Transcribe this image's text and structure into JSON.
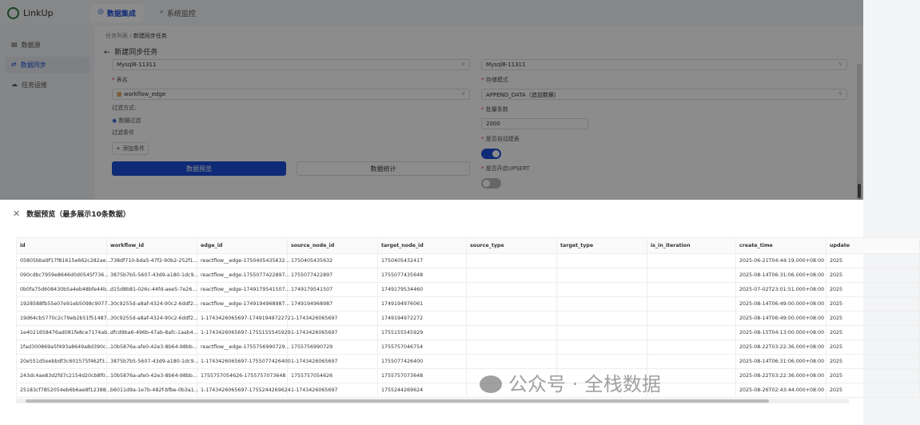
{
  "app": {
    "name": "LinkUp"
  },
  "topnav": [
    {
      "label": "数据集成",
      "icon": "eye-icon",
      "active": true
    },
    {
      "label": "系统监控",
      "icon": "search-icon",
      "active": false
    }
  ],
  "sidebar": [
    {
      "label": "数据源",
      "icon": "database-icon"
    },
    {
      "label": "数据同步",
      "icon": "sync-icon",
      "active": true
    },
    {
      "label": "任务运维",
      "icon": "cloud-icon"
    }
  ],
  "breadcrumb": [
    "任务列表",
    "新建同步任务"
  ],
  "page_title": "新建同步任务",
  "form": {
    "source_ds": "Mysql8-11311",
    "table_label": "表名",
    "table_value": "workflow_edge",
    "filter_mode_label": "过滤方式:",
    "filter_radio": "数据过滤",
    "filter_cond_label": "过滤条件",
    "add_cond": "+ 添加条件",
    "preview_btn": "数据预览",
    "stats_btn": "数据统计",
    "target_ds": "Mysql8-11311",
    "store_mode_label": "存储模式",
    "store_mode_value": "APPEND_DATA（追加数据）",
    "batch_label": "批量条数",
    "batch_value": "2000",
    "auto_create_label": "是否自动建表",
    "auto_create": true,
    "upsert_label": "是否开启UPSERT",
    "upsert": false,
    "accent": "#1d4ed8"
  },
  "drawer": {
    "title": "数据预览（最多展示10条数据）",
    "columns": [
      "id",
      "workflow_id",
      "edge_id",
      "source_node_id",
      "target_node_id",
      "source_type",
      "target_type",
      "is_in_iteration",
      "create_time",
      "update"
    ],
    "rows": [
      [
        "05805bba9f17f81615e662c282ae...",
        "738df710-bda5-47f2-90b2-252f1...",
        "reactflow__edge-1750405435632...",
        "1750405435632",
        "1750405432417",
        "",
        "",
        "",
        "2025-06-21T04:44:19.000+08:00",
        "2025"
      ],
      [
        "090cdbc7959e8646d0d0545f736...",
        "3875b7b5-5607-43d9-a180-1dc9...",
        "reactflow__edge-1755077422897...",
        "1755077422897",
        "1755077435648",
        "",
        "",
        "",
        "2025-08-14T06:31:06.000+08:00",
        "2025"
      ],
      [
        "0b0fa75d608430b5a4eb48bfe44b...",
        "d15d8b81-026c-44fd-aee5-7e26...",
        "reactflow__edge-1749179541507...",
        "1749179541507",
        "1749179534460",
        "",
        "",
        "",
        "2025-07-02T23:01:51.000+08:00",
        "2025"
      ],
      [
        "1928588fb55e07e91eb5098c9077...",
        "30c9255d-a8af-4324-90c2-6ddf2...",
        "reactflow__edge-1749194968987...",
        "1749194968987",
        "1749194976061",
        "",
        "",
        "",
        "2025-08-14T06:49:00.000+08:00",
        "2025"
      ],
      [
        "19d64cb5770c2c79eb2b51f51487...",
        "30c9255d-a8af-4324-90c2-6ddf2...",
        "1-1743426065697-1749194972272",
        "1-1743426065697",
        "1749194972272",
        "",
        "",
        "",
        "2025-08-14T06:49:00.000+08:00",
        "2025"
      ],
      [
        "1e4021658476ad081fe8ce7174ab...",
        "dfcd9ba6-496b-47ab-8afc-1aab4...",
        "1-1743426065697-1755155545929",
        "1-1743426065697",
        "1755155545929",
        "",
        "",
        "",
        "2025-08-15T04:13:00.000+08:00",
        "2025"
      ],
      [
        "1fad300869a5f493a8649a8d390c...",
        "10b5876a-afe0-42e3-8b64-98bb...",
        "reactflow__edge-1755756990729...",
        "1755756990729",
        "1755757046754",
        "",
        "",
        "",
        "2025-08-22T03:22:36.000+08:00",
        "2025"
      ],
      [
        "20e551d5eebbdf3c601575f462f3...",
        "3875b7b5-5607-43d9-a180-1dc9...",
        "1-1743426065697-1755077426400",
        "1-1743426065697",
        "1755077426400",
        "",
        "",
        "",
        "2025-08-14T06:31:06.000+08:00",
        "2025"
      ],
      [
        "243dc4ae83d2fd7c2154d20cb8f0...",
        "10b5876a-afe0-42e3-8b64-98bb...",
        "1755757054626-1755757073648",
        "1755757054626",
        "1755757073648",
        "",
        "",
        "",
        "2025-08-22T03:22:36.000+08:00",
        "2025"
      ],
      [
        "25183cf7852054eb6b6ae8f12388...",
        "b6011d9a-1e7b-482f-bfbe-0b3a1...",
        "1-1743426065697-1755244269624",
        "1-1743426065697",
        "1755244269624",
        "",
        "",
        "",
        "2025-08-26T02:43:44.000+08:00",
        "2025"
      ]
    ]
  },
  "watermark": "公众号 · 全栈数据"
}
